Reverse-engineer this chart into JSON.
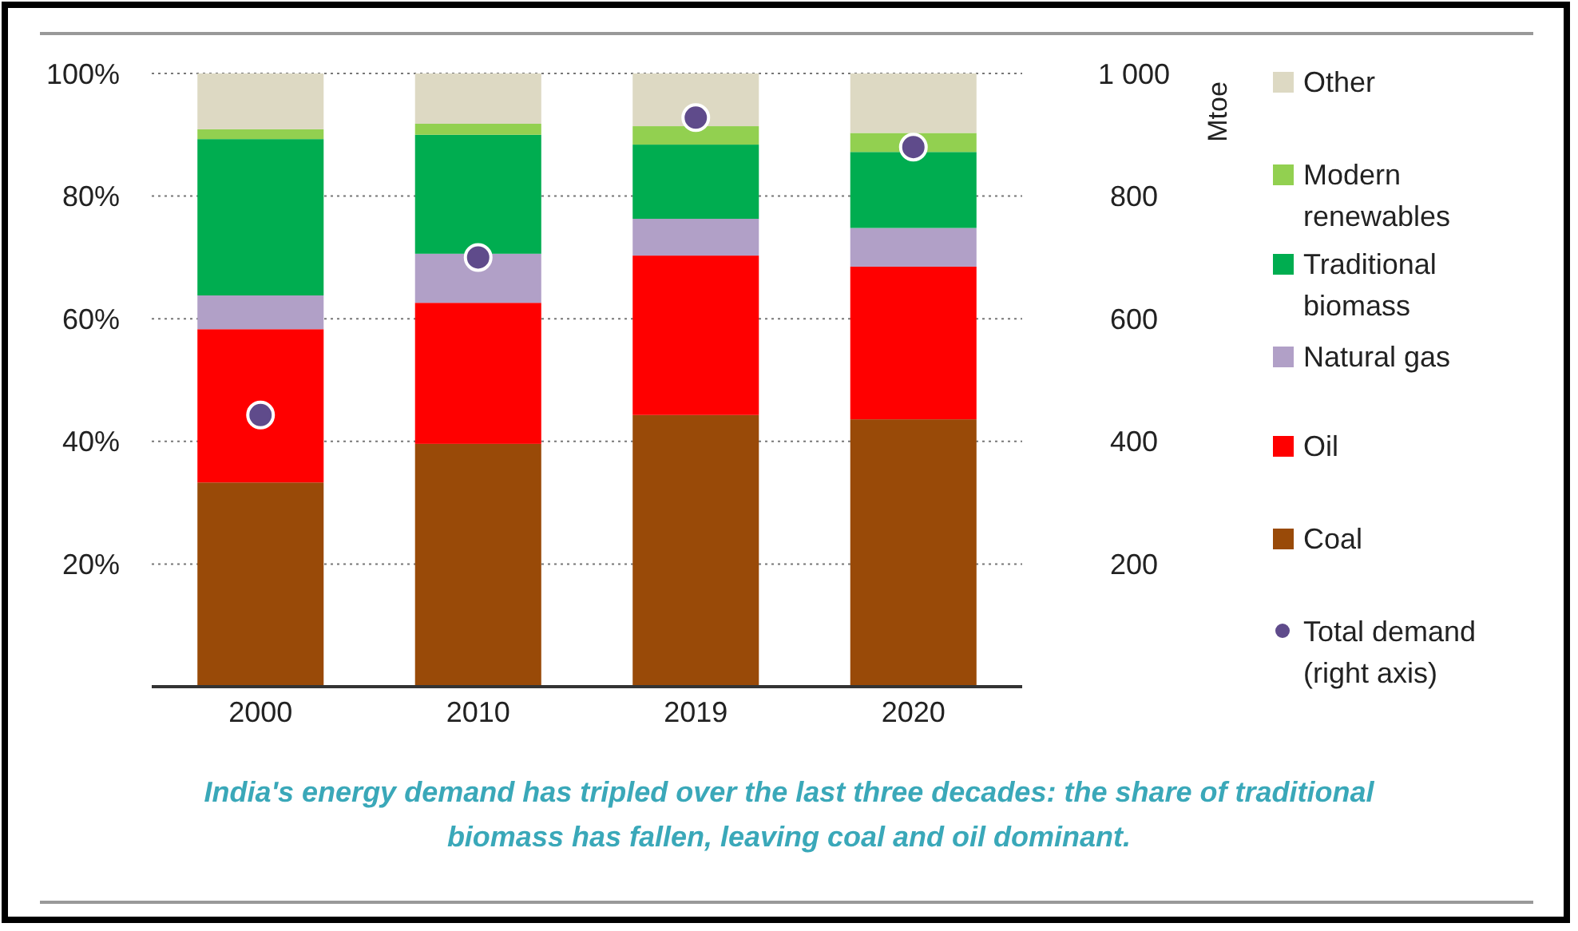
{
  "chart_data": {
    "type": "bar",
    "stacked": true,
    "categories": [
      "2000",
      "2010",
      "2019",
      "2020"
    ],
    "series": [
      {
        "name": "Coal",
        "color": "#994a08",
        "values": [
          33.3,
          39.6,
          44.3,
          43.6
        ]
      },
      {
        "name": "Oil",
        "color": "#ff0000",
        "values": [
          25,
          23,
          26,
          24.9
        ]
      },
      {
        "name": "Natural gas",
        "color": "#b1a0c7",
        "values": [
          5.5,
          8,
          6,
          6.3
        ]
      },
      {
        "name": "Traditional biomass",
        "color": "#00ad50",
        "values": [
          25.5,
          19.4,
          12.1,
          12.4
        ]
      },
      {
        "name": "Modern renewables",
        "color": "#92d050",
        "values": [
          1.6,
          1.8,
          3,
          3.1
        ]
      },
      {
        "name": "Other",
        "color": "#ddd9c3",
        "values": [
          9.1,
          8.2,
          8.6,
          9.7
        ]
      },
      {
        "name": "Total demand (right axis)",
        "type": "scatter",
        "axis": "y2",
        "marker": "circle",
        "color": "#5f4b8b",
        "values": [
          443,
          700,
          928,
          880
        ]
      }
    ],
    "ylim": [
      0,
      100
    ],
    "yticks": [
      {
        "value": 20,
        "label": "20%"
      },
      {
        "value": 40,
        "label": "40%"
      },
      {
        "value": 60,
        "label": "60%"
      },
      {
        "value": 80,
        "label": "80%"
      },
      {
        "value": 100,
        "label": "100%"
      }
    ],
    "y2lim": [
      0,
      1000
    ],
    "y2ticks": [
      200,
      400,
      600,
      800,
      {
        "value": 1000,
        "label": "1 000"
      }
    ],
    "y2label": "Mtoe",
    "grid": "y",
    "legend": "right",
    "annotations": [
      "India's energy demand has tripled over the last three decades: the share of traditional biomass has fallen, leaving coal and oil dominant."
    ]
  }
}
